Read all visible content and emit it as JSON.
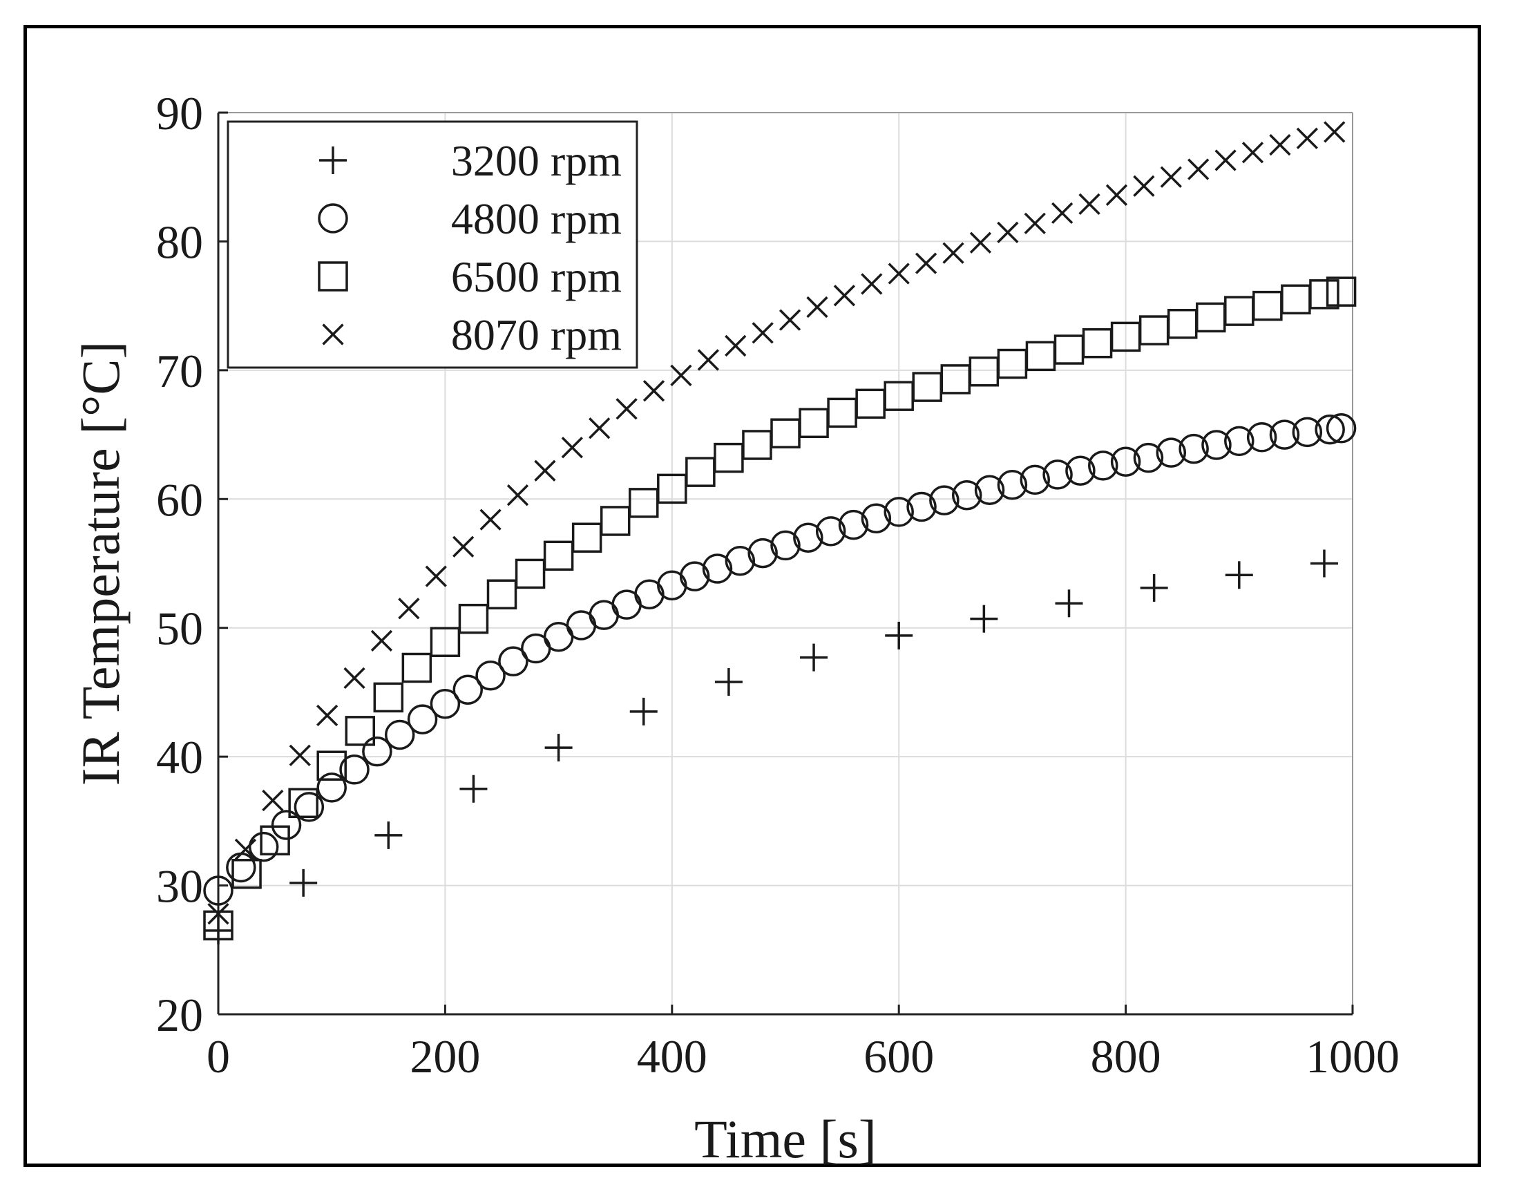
{
  "chart_data": {
    "type": "scatter",
    "title": "",
    "xlabel": "Time [s]",
    "ylabel": "IR Temperature [°C]",
    "xlim": [
      0,
      1000
    ],
    "ylim": [
      20,
      90
    ],
    "xticks": [
      0,
      200,
      400,
      600,
      800,
      1000
    ],
    "yticks": [
      20,
      30,
      40,
      50,
      60,
      70,
      80,
      90
    ],
    "xtick_labels": [
      "0",
      "200",
      "400",
      "600",
      "800",
      "1000"
    ],
    "ytick_labels": [
      "20",
      "30",
      "40",
      "50",
      "60",
      "70",
      "80",
      "90"
    ],
    "grid": true,
    "legend_position": "top-left",
    "series": [
      {
        "name": "3200 rpm",
        "marker": "plus",
        "x": [
          0,
          75,
          150,
          225,
          300,
          375,
          450,
          525,
          600,
          675,
          750,
          825,
          900,
          975
        ],
        "y": [
          26.5,
          30.2,
          33.9,
          37.5,
          40.7,
          43.5,
          45.8,
          47.7,
          49.4,
          50.7,
          51.9,
          53.1,
          54.1,
          55.0
        ]
      },
      {
        "name": "4800 rpm",
        "marker": "circle",
        "x": [
          0,
          20,
          40,
          60,
          80,
          100,
          120,
          140,
          160,
          180,
          200,
          220,
          240,
          260,
          280,
          300,
          320,
          340,
          360,
          380,
          400,
          420,
          440,
          460,
          480,
          500,
          520,
          540,
          560,
          580,
          600,
          620,
          640,
          660,
          680,
          700,
          720,
          740,
          760,
          780,
          800,
          820,
          840,
          860,
          880,
          900,
          920,
          940,
          960,
          980,
          990
        ],
        "y": [
          29.6,
          31.4,
          33.0,
          34.7,
          36.1,
          37.6,
          39.0,
          40.4,
          41.7,
          42.9,
          44.1,
          45.2,
          46.3,
          47.4,
          48.4,
          49.3,
          50.2,
          51.0,
          51.8,
          52.6,
          53.3,
          54.0,
          54.6,
          55.2,
          55.8,
          56.4,
          57.0,
          57.5,
          58.0,
          58.5,
          59.0,
          59.4,
          59.9,
          60.3,
          60.7,
          61.1,
          61.5,
          61.9,
          62.2,
          62.6,
          62.9,
          63.2,
          63.6,
          63.9,
          64.2,
          64.5,
          64.8,
          65.0,
          65.2,
          65.4,
          65.5
        ]
      },
      {
        "name": "6500 rpm",
        "marker": "square",
        "x": [
          0,
          25,
          50,
          75,
          100,
          125,
          150,
          175,
          200,
          225,
          250,
          275,
          300,
          325,
          350,
          375,
          400,
          425,
          450,
          475,
          500,
          525,
          550,
          575,
          600,
          625,
          650,
          675,
          700,
          725,
          750,
          775,
          800,
          825,
          850,
          875,
          900,
          925,
          950,
          975,
          990
        ],
        "y": [
          26.9,
          30.9,
          33.5,
          36.4,
          39.3,
          42.0,
          44.6,
          46.9,
          48.9,
          50.7,
          52.6,
          54.2,
          55.6,
          57.0,
          58.3,
          59.7,
          60.8,
          62.1,
          63.2,
          64.2,
          65.1,
          65.9,
          66.7,
          67.4,
          68.0,
          68.7,
          69.3,
          69.9,
          70.5,
          71.1,
          71.6,
          72.1,
          72.6,
          73.1,
          73.6,
          74.1,
          74.6,
          75.0,
          75.5,
          75.9,
          76.1
        ]
      },
      {
        "name": "8070 rpm",
        "marker": "x",
        "x": [
          0,
          24,
          48,
          72,
          96,
          120,
          144,
          168,
          192,
          216,
          240,
          264,
          288,
          312,
          336,
          360,
          384,
          408,
          432,
          456,
          480,
          504,
          528,
          552,
          576,
          600,
          624,
          648,
          672,
          696,
          720,
          744,
          768,
          792,
          816,
          840,
          864,
          888,
          912,
          936,
          960,
          984
        ],
        "y": [
          27.8,
          32.8,
          36.6,
          40.1,
          43.2,
          46.1,
          49.0,
          51.5,
          54.0,
          56.3,
          58.4,
          60.3,
          62.2,
          64.0,
          65.5,
          67.0,
          68.4,
          69.6,
          70.8,
          71.9,
          72.9,
          73.9,
          74.9,
          75.8,
          76.7,
          77.5,
          78.3,
          79.1,
          79.9,
          80.7,
          81.4,
          82.2,
          82.9,
          83.6,
          84.3,
          85.0,
          85.6,
          86.3,
          86.9,
          87.5,
          88.0,
          88.5
        ]
      }
    ]
  }
}
